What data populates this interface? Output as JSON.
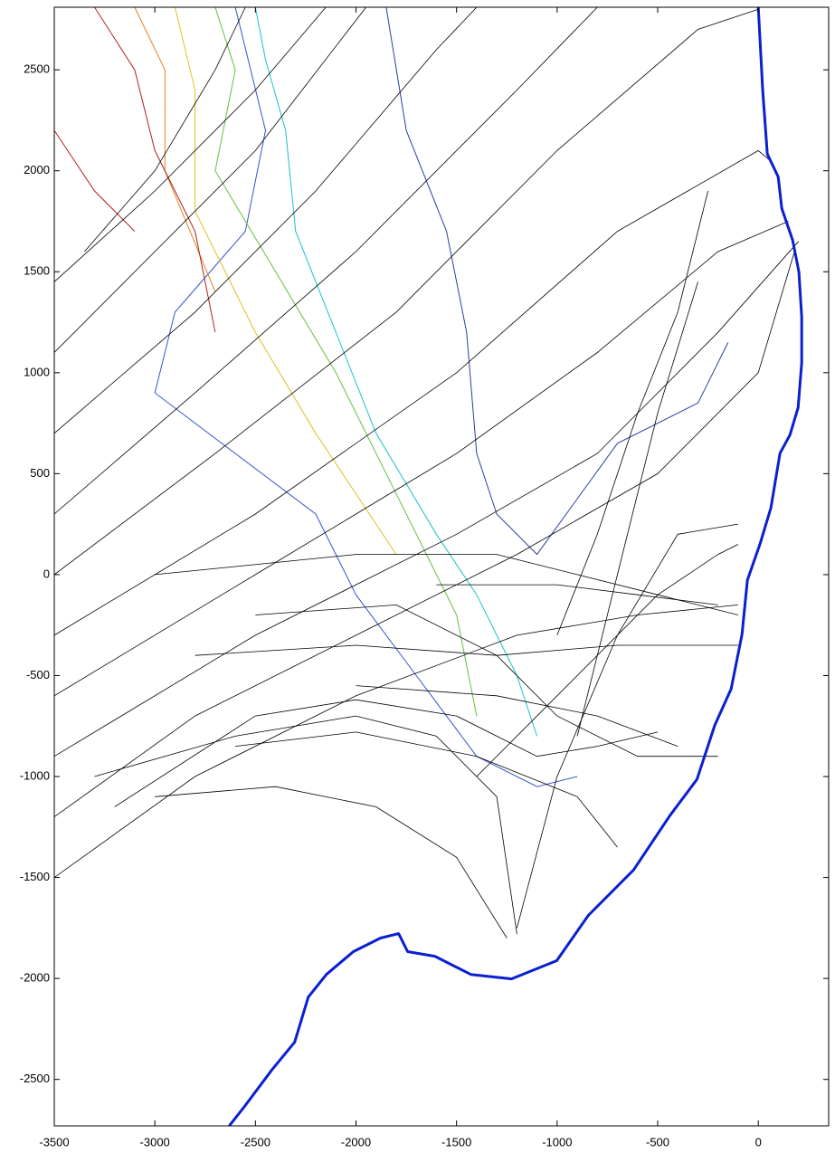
{
  "chart_data": {
    "type": "line",
    "xlim": [
      -3500,
      350
    ],
    "ylim": [
      -2730,
      2810
    ],
    "xticks": [
      -3500,
      -3000,
      -2500,
      -2000,
      -1500,
      -1000,
      -500,
      0
    ],
    "yticks": [
      -2500,
      -2000,
      -1500,
      -1000,
      -500,
      0,
      500,
      1000,
      1500,
      2000,
      2500
    ],
    "rays": {
      "color": "#000000",
      "lines": [
        {
          "x": [
            -3500,
            -3000,
            -2500,
            -2150
          ],
          "y": [
            1450,
            1900,
            2400,
            2810
          ]
        },
        {
          "x": [
            -3500,
            -3000,
            -2500,
            -1950
          ],
          "y": [
            1100,
            1600,
            2100,
            2810
          ]
        },
        {
          "x": [
            -3500,
            -2800,
            -2200,
            -1600,
            -1400
          ],
          "y": [
            700,
            1300,
            1900,
            2600,
            2810
          ]
        },
        {
          "x": [
            -3500,
            -2800,
            -2000,
            -1200,
            -800
          ],
          "y": [
            300,
            900,
            1600,
            2400,
            2810
          ]
        },
        {
          "x": [
            -3500,
            -2700,
            -1800,
            -1000,
            -300,
            0
          ],
          "y": [
            0,
            600,
            1300,
            2100,
            2700,
            2800
          ]
        },
        {
          "x": [
            -3500,
            -2500,
            -1500,
            -700,
            0,
            60
          ],
          "y": [
            -300,
            300,
            1000,
            1700,
            2100,
            2050
          ]
        },
        {
          "x": [
            -3500,
            -2500,
            -1500,
            -800,
            -200,
            150
          ],
          "y": [
            -600,
            0,
            600,
            1100,
            1600,
            1750
          ]
        },
        {
          "x": [
            -3500,
            -2500,
            -1500,
            -800,
            -200,
            200
          ],
          "y": [
            -900,
            -300,
            200,
            600,
            1200,
            1650
          ]
        },
        {
          "x": [
            -3500,
            -2800,
            -2000,
            -1200,
            -500,
            0,
            180
          ],
          "y": [
            -1200,
            -700,
            -300,
            100,
            500,
            1000,
            1600
          ]
        },
        {
          "x": [
            -3500,
            -2800,
            -2000,
            -1200,
            -600,
            -100
          ],
          "y": [
            -1500,
            -1000,
            -600,
            -300,
            -200,
            -150
          ]
        },
        {
          "x": [
            -3200,
            -2500,
            -2000,
            -1500,
            -1100,
            -800,
            -500
          ],
          "y": [
            -1150,
            -700,
            -620,
            -700,
            -900,
            -850,
            -780
          ]
        },
        {
          "x": [
            -3000,
            -2400,
            -1900,
            -1500,
            -1250
          ],
          "y": [
            -1100,
            -1050,
            -1150,
            -1400,
            -1800
          ]
        },
        {
          "x": [
            -3300,
            -2600,
            -2000,
            -1600,
            -1300,
            -1200
          ],
          "y": [
            -1000,
            -800,
            -700,
            -800,
            -1100,
            -1780
          ]
        },
        {
          "x": [
            -2600,
            -2000,
            -1400,
            -900,
            -700
          ],
          "y": [
            -850,
            -780,
            -900,
            -1100,
            -1350
          ]
        },
        {
          "x": [
            -2500,
            -1800,
            -1300,
            -1000,
            -600,
            -200
          ],
          "y": [
            -200,
            -150,
            -400,
            -700,
            -900,
            -900
          ]
        },
        {
          "x": [
            -1200,
            -1000,
            -700,
            -400,
            -100
          ],
          "y": [
            -1750,
            -1000,
            -300,
            200,
            250
          ]
        },
        {
          "x": [
            -1400,
            -1000,
            -500,
            -200,
            -100
          ],
          "y": [
            -1000,
            -600,
            -100,
            100,
            150
          ]
        },
        {
          "x": [
            -3000,
            -2000,
            -1300,
            -900,
            -500,
            -100
          ],
          "y": [
            0,
            100,
            100,
            0,
            -100,
            -200
          ]
        },
        {
          "x": [
            -2800,
            -2000,
            -1300,
            -700,
            -100
          ],
          "y": [
            -400,
            -350,
            -400,
            -350,
            -350
          ]
        },
        {
          "x": [
            -1000,
            -800,
            -600,
            -400,
            -250
          ],
          "y": [
            -300,
            200,
            800,
            1300,
            1900
          ]
        },
        {
          "x": [
            -900,
            -700,
            -500,
            -300
          ],
          "y": [
            -800,
            0,
            800,
            1450
          ]
        },
        {
          "x": [
            -3350,
            -3000,
            -2700,
            -2550
          ],
          "y": [
            1600,
            2000,
            2500,
            2810
          ]
        },
        {
          "x": [
            -1600,
            -1000,
            -600,
            -200
          ],
          "y": [
            -50,
            -50,
            -100,
            -150
          ]
        },
        {
          "x": [
            -2000,
            -1300,
            -800,
            -400
          ],
          "y": [
            -550,
            -600,
            -700,
            -850
          ]
        }
      ]
    },
    "contours": [
      {
        "color": "#2a3f9e",
        "x": [
          -1850,
          -1750,
          -1550,
          -1450,
          -1400,
          -1300,
          -1100,
          -700,
          -300,
          -150
        ],
        "y": [
          2810,
          2200,
          1700,
          1200,
          600,
          300,
          100,
          650,
          850,
          1150
        ]
      },
      {
        "color": "#3355cc",
        "x": [
          -2600,
          -2450,
          -2550,
          -2900,
          -3000,
          -2600,
          -2200,
          -2000,
          -1700,
          -1400,
          -1100,
          -900
        ],
        "y": [
          2810,
          2200,
          1700,
          1300,
          900,
          600,
          300,
          -100,
          -500,
          -900,
          -1050,
          -1000
        ]
      },
      {
        "color": "#19c0d0",
        "x": [
          -2500,
          -2450,
          -2350,
          -2300,
          -2100,
          -1900,
          -1600,
          -1400,
          -1200,
          -1100
        ],
        "y": [
          2810,
          2550,
          2200,
          1700,
          1200,
          700,
          200,
          -100,
          -500,
          -800
        ]
      },
      {
        "color": "#60c040",
        "x": [
          -2700,
          -2600,
          -2700,
          -2400,
          -2100,
          -1800,
          -1500,
          -1400
        ],
        "y": [
          2810,
          2500,
          2000,
          1500,
          1000,
          400,
          -200,
          -700
        ]
      },
      {
        "color": "#e0c020",
        "x": [
          -2900,
          -2800,
          -2800,
          -2500,
          -2200,
          -1800
        ],
        "y": [
          2810,
          2400,
          1800,
          1200,
          700,
          100
        ]
      },
      {
        "color": "#e08020",
        "x": [
          -3100,
          -2950,
          -2950,
          -2700
        ],
        "y": [
          2810,
          2500,
          2000,
          1400
        ]
      },
      {
        "color": "#b02020",
        "x": [
          -3300,
          -3100,
          -3000,
          -2800,
          -2700
        ],
        "y": [
          2810,
          2500,
          2100,
          1700,
          1200
        ]
      },
      {
        "color": "#b02020",
        "x": [
          -3500,
          -3300,
          -3100
        ],
        "y": [
          2200,
          1900,
          1700
        ]
      }
    ],
    "coastline": {
      "color": "#0a1fd0",
      "x": [
        0,
        22,
        45,
        99,
        117,
        171,
        202,
        216,
        216,
        198,
        157,
        108,
        63,
        9,
        -54,
        -81,
        -135,
        -216,
        -305,
        -440,
        -620,
        -845,
        -1002,
        -1227,
        -1429,
        -1608,
        -1743,
        -1788,
        -1878,
        -2013,
        -2147,
        -2237,
        -2305,
        -2417,
        -2552,
        -2630
      ],
      "y": [
        2810,
        2397,
        2083,
        1970,
        1813,
        1656,
        1499,
        1275,
        1050,
        826,
        691,
        601,
        332,
        153,
        -27,
        -296,
        -566,
        -745,
        -1014,
        -1194,
        -1463,
        -1688,
        -1912,
        -2002,
        -1980,
        -1890,
        -1867,
        -1778,
        -1800,
        -1867,
        -1980,
        -2092,
        -2316,
        -2451,
        -2631,
        -2730
      ]
    }
  }
}
